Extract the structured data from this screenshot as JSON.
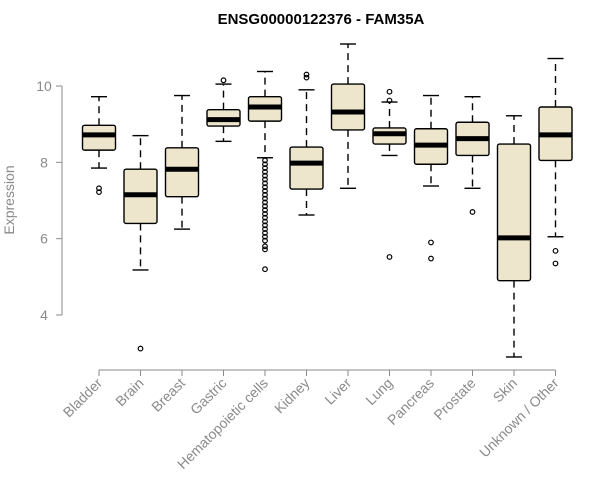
{
  "chart_data": {
    "type": "boxplot",
    "title": "ENSG00000122376 - FAM35A",
    "ylabel": "Expression",
    "xlabel": "",
    "ylim": [
      2.8,
      11.3
    ],
    "yticks": [
      4,
      6,
      8,
      10
    ],
    "box_fill": "#ede6cc",
    "axis_color": "#8a8a8a",
    "categories": [
      "Bladder",
      "Brain",
      "Breast",
      "Gastric",
      "Hematopoietic cells",
      "Kidney",
      "Liver",
      "Lung",
      "Pancreas",
      "Prostate",
      "Skin",
      "Unknown / Other"
    ],
    "boxes": [
      {
        "name": "Bladder",
        "whislo": 7.85,
        "q1": 8.32,
        "med": 8.72,
        "q3": 8.97,
        "whishi": 9.72,
        "fliers": [
          7.22,
          7.32
        ]
      },
      {
        "name": "Brain",
        "whislo": 5.18,
        "q1": 6.4,
        "med": 7.15,
        "q3": 7.82,
        "whishi": 8.7,
        "fliers": [
          3.12
        ]
      },
      {
        "name": "Breast",
        "whislo": 6.25,
        "q1": 7.1,
        "med": 7.82,
        "q3": 8.38,
        "whishi": 9.75,
        "fliers": []
      },
      {
        "name": "Gastric",
        "whislo": 8.55,
        "q1": 8.95,
        "med": 9.12,
        "q3": 9.38,
        "whishi": 10.05,
        "fliers": [
          10.15
        ]
      },
      {
        "name": "Hematopoietic cells",
        "whislo": 8.12,
        "q1": 9.08,
        "med": 9.45,
        "q3": 9.72,
        "whishi": 10.38,
        "fliers": [
          8.05,
          7.95,
          7.85,
          7.75,
          7.65,
          7.55,
          7.45,
          7.35,
          7.25,
          7.15,
          7.05,
          6.95,
          6.85,
          6.75,
          6.65,
          6.55,
          6.45,
          6.35,
          6.25,
          6.15,
          6.05,
          5.95,
          5.8,
          5.72,
          5.2
        ]
      },
      {
        "name": "Kidney",
        "whislo": 6.62,
        "q1": 7.3,
        "med": 7.98,
        "q3": 8.4,
        "whishi": 9.9,
        "fliers": [
          10.22,
          10.3
        ]
      },
      {
        "name": "Liver",
        "whislo": 7.32,
        "q1": 8.85,
        "med": 9.32,
        "q3": 10.05,
        "whishi": 11.1,
        "fliers": []
      },
      {
        "name": "Lung",
        "whislo": 8.18,
        "q1": 8.48,
        "med": 8.75,
        "q3": 8.9,
        "whishi": 9.58,
        "fliers": [
          9.85,
          9.62,
          5.52
        ]
      },
      {
        "name": "Pancreas",
        "whislo": 7.38,
        "q1": 7.95,
        "med": 8.45,
        "q3": 8.88,
        "whishi": 9.75,
        "fliers": [
          5.9,
          5.48
        ]
      },
      {
        "name": "Prostate",
        "whislo": 7.32,
        "q1": 8.18,
        "med": 8.62,
        "q3": 9.05,
        "whishi": 9.72,
        "fliers": [
          6.7
        ]
      },
      {
        "name": "Skin",
        "whislo": 2.9,
        "q1": 4.9,
        "med": 6.02,
        "q3": 8.48,
        "whishi": 9.22,
        "fliers": []
      },
      {
        "name": "Unknown / Other",
        "whislo": 6.05,
        "q1": 8.05,
        "med": 8.72,
        "q3": 9.45,
        "whishi": 10.72,
        "fliers": [
          5.68,
          5.35
        ]
      }
    ]
  }
}
